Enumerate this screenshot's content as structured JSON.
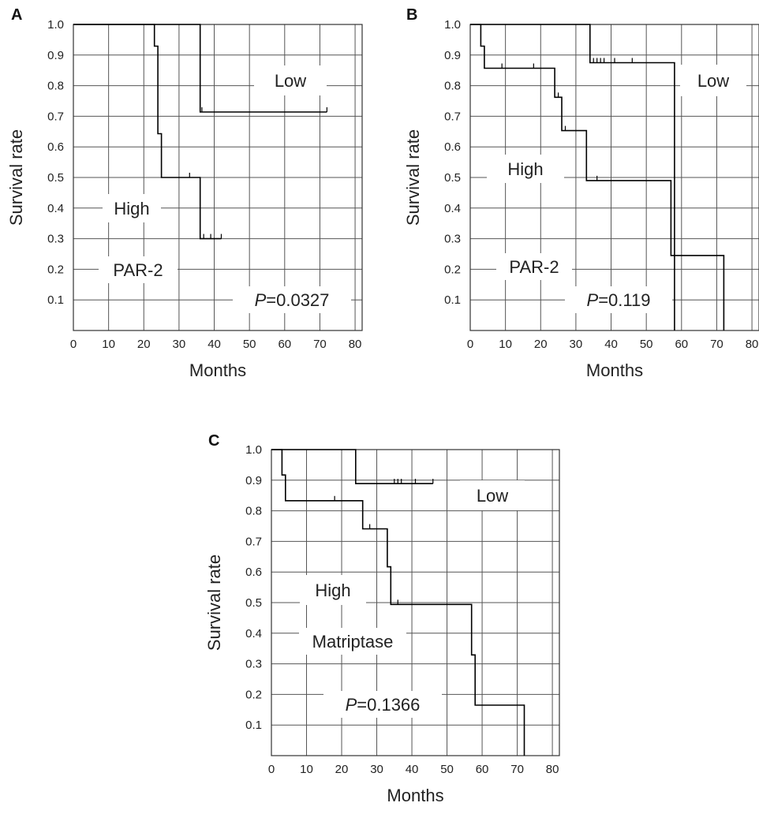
{
  "chart_data": [
    {
      "panel": "A",
      "type": "line",
      "xlabel": "Months",
      "ylabel": "Survival rate",
      "xlim": [
        0,
        82
      ],
      "ylim": [
        0,
        1.0
      ],
      "xticks": [
        "0",
        "10",
        "20",
        "30",
        "40",
        "50",
        "60",
        "70",
        "80"
      ],
      "yticks": [
        "0.1",
        "0.2",
        "0.3",
        "0.4",
        "0.5",
        "0.6",
        "0.7",
        "0.8",
        "0.9",
        "1.0"
      ],
      "grid": true,
      "annotations": {
        "marker": "PAR-2",
        "p_prefix": "P",
        "p_value": "=0.0327"
      },
      "series": [
        {
          "name": "High",
          "steps": [
            [
              0,
              1.0
            ],
            [
              23,
              1.0
            ],
            [
              23,
              0.929
            ],
            [
              24,
              0.929
            ],
            [
              24,
              0.643
            ],
            [
              25,
              0.643
            ],
            [
              25,
              0.5
            ],
            [
              36,
              0.5
            ],
            [
              36,
              0.3
            ],
            [
              42,
              0.3
            ]
          ],
          "censored": [
            [
              33,
              0.5
            ],
            [
              37,
              0.3
            ],
            [
              39,
              0.3
            ],
            [
              42,
              0.3
            ]
          ]
        },
        {
          "name": "Low",
          "steps": [
            [
              0,
              1.0
            ],
            [
              36,
              1.0
            ],
            [
              36,
              0.714
            ],
            [
              72,
              0.714
            ]
          ],
          "censored": [
            [
              36.5,
              0.714
            ],
            [
              72,
              0.714
            ]
          ]
        }
      ]
    },
    {
      "panel": "B",
      "type": "line",
      "xlabel": "Months",
      "ylabel": "Survival rate",
      "xlim": [
        0,
        82
      ],
      "ylim": [
        0,
        1.0
      ],
      "xticks": [
        "0",
        "10",
        "20",
        "30",
        "40",
        "50",
        "60",
        "70",
        "80"
      ],
      "yticks": [
        "0.1",
        "0.2",
        "0.3",
        "0.4",
        "0.5",
        "0.6",
        "0.7",
        "0.8",
        "0.9",
        "1.0"
      ],
      "grid": true,
      "annotations": {
        "marker": "PAR-2",
        "p_prefix": "P",
        "p_value": "=0.119"
      },
      "series": [
        {
          "name": "High",
          "steps": [
            [
              0,
              1.0
            ],
            [
              3,
              1.0
            ],
            [
              3,
              0.929
            ],
            [
              4,
              0.929
            ],
            [
              4,
              0.857
            ],
            [
              24,
              0.857
            ],
            [
              24,
              0.762
            ],
            [
              26,
              0.762
            ],
            [
              26,
              0.653
            ],
            [
              33,
              0.653
            ],
            [
              33,
              0.49
            ],
            [
              57,
              0.49
            ],
            [
              57,
              0.245
            ],
            [
              72,
              0.245
            ],
            [
              72,
              0
            ]
          ],
          "censored": [
            [
              9,
              0.857
            ],
            [
              18,
              0.857
            ],
            [
              25,
              0.762
            ],
            [
              27,
              0.653
            ],
            [
              36,
              0.49
            ]
          ]
        },
        {
          "name": "Low",
          "steps": [
            [
              0,
              1.0
            ],
            [
              34,
              1.0
            ],
            [
              34,
              0.875
            ],
            [
              58,
              0.875
            ],
            [
              58,
              0
            ]
          ],
          "censored": [
            [
              35,
              0.875
            ],
            [
              36,
              0.875
            ],
            [
              37,
              0.875
            ],
            [
              38,
              0.875
            ],
            [
              41,
              0.875
            ],
            [
              46,
              0.875
            ]
          ]
        }
      ]
    },
    {
      "panel": "C",
      "type": "line",
      "xlabel": "Months",
      "ylabel": "Survival rate",
      "xlim": [
        0,
        82
      ],
      "ylim": [
        0,
        1.0
      ],
      "xticks": [
        "0",
        "10",
        "20",
        "30",
        "40",
        "50",
        "60",
        "70",
        "80"
      ],
      "yticks": [
        "0.1",
        "0.2",
        "0.3",
        "0.4",
        "0.5",
        "0.6",
        "0.7",
        "0.8",
        "0.9",
        "1.0"
      ],
      "grid": true,
      "annotations": {
        "marker": "Matriptase",
        "p_prefix": "P",
        "p_value": "=0.1366"
      },
      "series": [
        {
          "name": "High",
          "steps": [
            [
              0,
              1.0
            ],
            [
              3,
              1.0
            ],
            [
              3,
              0.917
            ],
            [
              4,
              0.917
            ],
            [
              4,
              0.833
            ],
            [
              26,
              0.833
            ],
            [
              26,
              0.741
            ],
            [
              33,
              0.741
            ],
            [
              33,
              0.617
            ],
            [
              34,
              0.617
            ],
            [
              34,
              0.494
            ],
            [
              57,
              0.494
            ],
            [
              57,
              0.329
            ],
            [
              58,
              0.329
            ],
            [
              58,
              0.165
            ],
            [
              72,
              0.165
            ],
            [
              72,
              0
            ]
          ],
          "censored": [
            [
              18,
              0.833
            ],
            [
              28,
              0.741
            ],
            [
              36,
              0.494
            ]
          ]
        },
        {
          "name": "Low",
          "steps": [
            [
              0,
              1.0
            ],
            [
              24,
              1.0
            ],
            [
              24,
              0.889
            ],
            [
              46,
              0.889
            ]
          ],
          "censored": [
            [
              35,
              0.889
            ],
            [
              36,
              0.889
            ],
            [
              37,
              0.889
            ],
            [
              41,
              0.889
            ],
            [
              46,
              0.889
            ]
          ]
        }
      ]
    }
  ]
}
